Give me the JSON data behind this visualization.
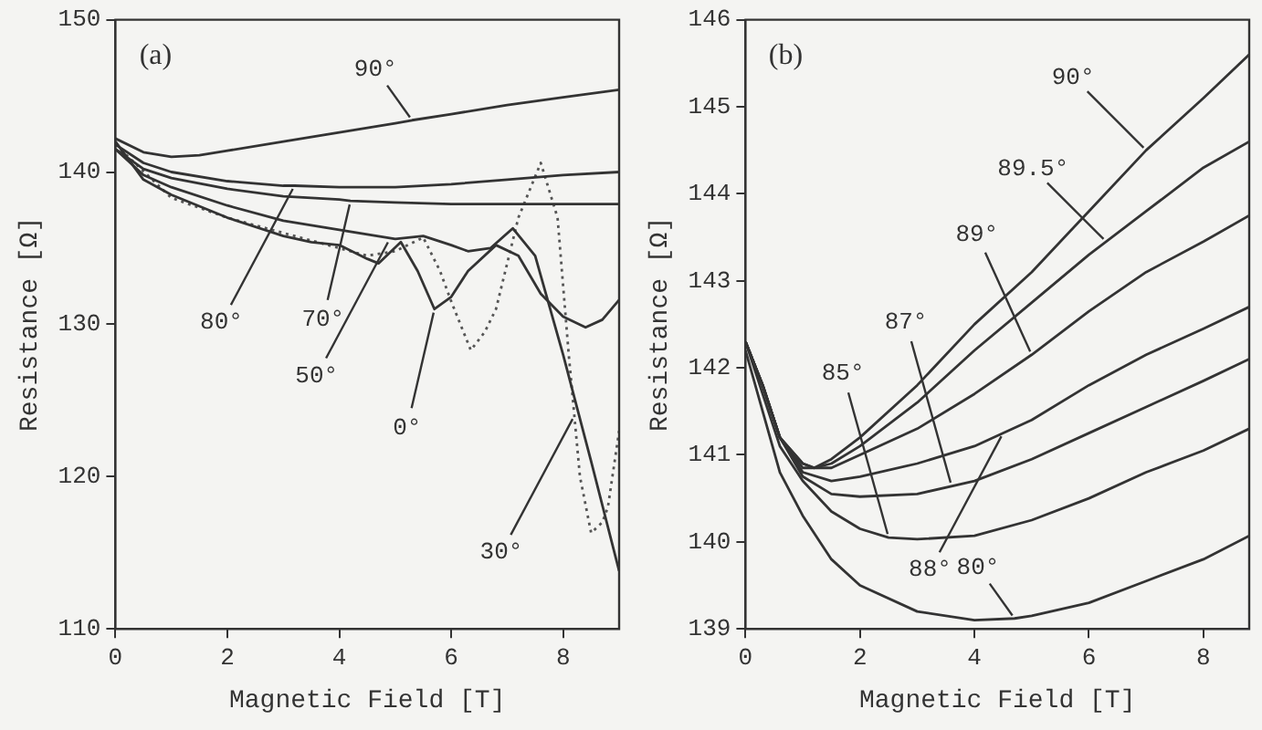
{
  "chart_data": [
    {
      "type": "line",
      "xlabel": "Magnetic Field [T]",
      "ylabel": "Resistance [Ω]",
      "xlim": [
        0,
        9
      ],
      "xticks": [
        0,
        2,
        4,
        6,
        8
      ],
      "ylim": [
        110,
        150
      ],
      "yticks": [
        110,
        120,
        130,
        140,
        150
      ],
      "grid": false,
      "legend": false,
      "marker": "none",
      "series": [
        {
          "color": "#333333",
          "x": [
            0,
            0.5,
            1,
            1.5,
            2,
            3,
            4,
            5,
            5.3,
            6,
            7,
            8,
            9
          ],
          "values": [
            142.2,
            141.3,
            141,
            141.1,
            141.4,
            142,
            142.6,
            143.2,
            143.4,
            143.8,
            144.4,
            144.9,
            145.4
          ]
        },
        {
          "color": "#333333",
          "x": [
            0,
            0.5,
            1,
            2,
            3,
            3.2,
            4,
            5,
            6,
            7,
            8,
            9
          ],
          "values": [
            141.8,
            140.6,
            140,
            139.4,
            139.1,
            139.1,
            139,
            139,
            139.2,
            139.5,
            139.8,
            140
          ]
        },
        {
          "color": "#333333",
          "x": [
            0,
            0.5,
            1,
            2,
            3,
            4,
            4.2,
            5,
            6,
            7,
            8,
            9
          ],
          "values": [
            141.5,
            140.2,
            139.6,
            138.9,
            138.4,
            138.2,
            138.1,
            138,
            137.9,
            137.9,
            137.9,
            137.9
          ]
        },
        {
          "color": "#333333",
          "x": [
            0,
            0.5,
            1,
            2,
            3,
            4,
            4.5,
            5,
            5.5,
            6,
            6.3,
            6.7,
            7.1,
            7.5,
            8,
            8.5,
            9
          ],
          "values": [
            141.5,
            139.8,
            139,
            137.8,
            136.8,
            136.2,
            135.9,
            135.6,
            135.8,
            135.2,
            134.8,
            135,
            136.3,
            134.5,
            128,
            121,
            113.8
          ]
        },
        {
          "color": "#333333",
          "x": [
            0,
            0.5,
            1,
            2,
            3,
            3.5,
            4,
            4.5,
            4.7,
            5.1,
            5.4,
            5.7,
            6,
            6.3,
            6.8,
            7.2,
            7.6,
            8,
            8.4,
            8.7,
            9
          ],
          "values": [
            142,
            139.5,
            138.5,
            137,
            135.8,
            135.4,
            135.2,
            134.3,
            134,
            135.4,
            133.5,
            131,
            131.8,
            133.5,
            135.2,
            134.5,
            132,
            130.5,
            129.8,
            130.3,
            131.6
          ]
        },
        {
          "color": "#555555",
          "line_style": "dotted",
          "x": [
            0,
            1,
            2,
            3,
            4,
            4.5,
            5,
            5.5,
            5.8,
            6,
            6.35,
            6.6,
            6.8,
            7.2,
            7.6,
            7.9,
            8.1,
            8.3,
            8.5,
            8.7,
            8.8,
            9
          ],
          "values": [
            141.8,
            138.3,
            137,
            136,
            135,
            134.5,
            134.8,
            135.7,
            133.5,
            131.5,
            128.3,
            129.5,
            131,
            137,
            140.6,
            137,
            128,
            120,
            116.3,
            117,
            118,
            123
          ]
        }
      ],
      "annotations": [
        "(a)",
        {
          "text": "90°",
          "x": 5.3,
          "y": 143.4
        },
        {
          "text": "80°",
          "x": 3.2,
          "y": 139.1
        },
        {
          "text": "70°",
          "x": 4.2,
          "y": 138.1
        },
        {
          "text": "50°",
          "x": 4.9,
          "y": 135.6
        },
        {
          "text": "0°",
          "x": 5.7,
          "y": 131
        },
        {
          "text": "30°",
          "x": 8.2,
          "y": 124
        }
      ]
    },
    {
      "type": "line",
      "xlabel": "Magnetic Field [T]",
      "ylabel": "Resistance [Ω]",
      "xlim": [
        0,
        8.8
      ],
      "xticks": [
        0,
        2,
        4,
        6,
        8
      ],
      "ylim": [
        139,
        146
      ],
      "yticks": [
        139,
        140,
        141,
        142,
        143,
        144,
        145,
        146
      ],
      "grid": false,
      "legend": false,
      "marker": "none",
      "series": [
        {
          "color": "#333333",
          "x": [
            0,
            0.3,
            0.6,
            1,
            1.2,
            1.5,
            2,
            3,
            4,
            5,
            6,
            7,
            8,
            8.8
          ],
          "values": [
            142.3,
            141.8,
            141.2,
            140.9,
            140.85,
            140.95,
            141.2,
            141.8,
            142.5,
            143.1,
            143.8,
            144.5,
            145.1,
            145.6
          ]
        },
        {
          "color": "#333333",
          "x": [
            0,
            0.3,
            0.6,
            1,
            1.2,
            1.5,
            2,
            3,
            4,
            5,
            6,
            7,
            8,
            8.8
          ],
          "values": [
            142.3,
            141.8,
            141.2,
            140.9,
            140.85,
            140.9,
            141.1,
            141.6,
            142.2,
            142.75,
            143.3,
            143.8,
            144.3,
            144.6
          ]
        },
        {
          "color": "#333333",
          "x": [
            0,
            0.3,
            0.6,
            1,
            1.5,
            2,
            3,
            4,
            5,
            6,
            7,
            8,
            8.8
          ],
          "values": [
            142.3,
            141.8,
            141.2,
            140.85,
            140.85,
            141,
            141.3,
            141.7,
            142.15,
            142.65,
            143.1,
            143.45,
            143.75
          ]
        },
        {
          "color": "#333333",
          "x": [
            0,
            0.3,
            0.6,
            1,
            1.5,
            2,
            3,
            4,
            5,
            6,
            7,
            8,
            8.8
          ],
          "values": [
            142.3,
            141.8,
            141.2,
            140.8,
            140.7,
            140.75,
            140.9,
            141.1,
            141.4,
            141.8,
            142.15,
            142.45,
            142.7
          ]
        },
        {
          "color": "#333333",
          "x": [
            0,
            0.3,
            0.6,
            1,
            1.5,
            2,
            3,
            4,
            5,
            6,
            7,
            8,
            8.8
          ],
          "values": [
            142.3,
            141.8,
            141.2,
            140.75,
            140.55,
            140.52,
            140.55,
            140.7,
            140.95,
            141.25,
            141.55,
            141.85,
            142.1
          ]
        },
        {
          "color": "#333333",
          "x": [
            0,
            0.3,
            0.6,
            1,
            1.5,
            2,
            2.5,
            3,
            4,
            5,
            6,
            7,
            8,
            8.8
          ],
          "values": [
            142.3,
            141.7,
            141.1,
            140.7,
            140.35,
            140.15,
            140.05,
            140.03,
            140.07,
            140.25,
            140.5,
            140.8,
            141.05,
            141.3
          ]
        },
        {
          "color": "#333333",
          "x": [
            0,
            0.3,
            0.6,
            1,
            1.5,
            2,
            3,
            4,
            4.7,
            5,
            6,
            7,
            8,
            8.8
          ],
          "values": [
            142.2,
            141.5,
            140.8,
            140.3,
            139.8,
            139.5,
            139.2,
            139.1,
            139.12,
            139.15,
            139.3,
            139.55,
            139.8,
            140.07
          ]
        }
      ],
      "annotations": [
        "(b)",
        {
          "text": "90°",
          "x": 7,
          "y": 144.5
        },
        {
          "text": "89.5°",
          "x": 6.3,
          "y": 143.45
        },
        {
          "text": "89°",
          "x": 5,
          "y": 142.15
        },
        {
          "text": "88°",
          "x": 4.5,
          "y": 141.25
        },
        {
          "text": "87°",
          "x": 3.6,
          "y": 140.64
        },
        {
          "text": "85°",
          "x": 2.5,
          "y": 140.05
        },
        {
          "text": "80°",
          "x": 4.7,
          "y": 139.12
        }
      ]
    }
  ]
}
